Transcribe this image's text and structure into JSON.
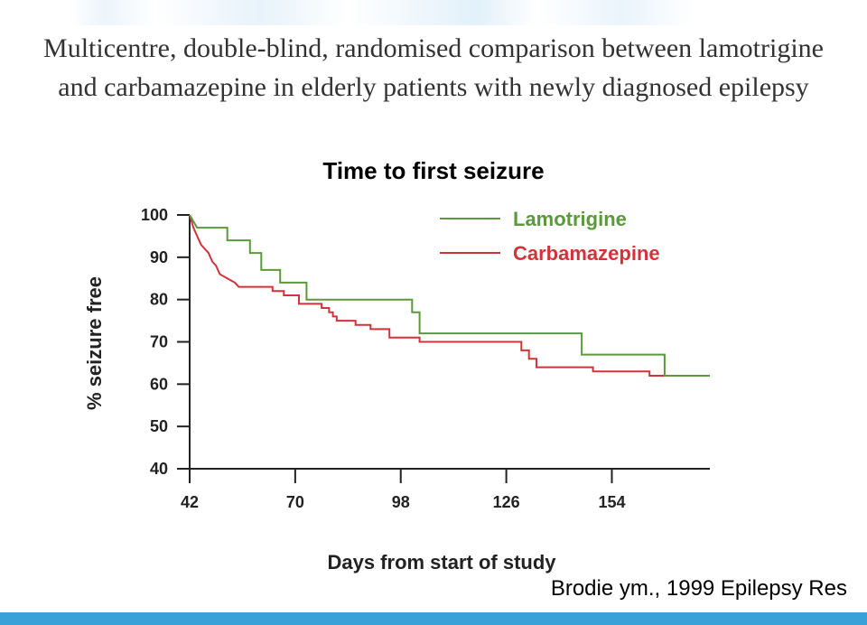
{
  "slide": {
    "title": "Multicentre, double-blind, randomised comparison between lamotrigine and carbamazepine in elderly patients with newly diagnosed epilepsy",
    "citation": "Brodie ym., 1999 Epilepsy Res"
  },
  "colors": {
    "lamotrigine": "#5a9a3c",
    "carbamazepine": "#d2333b",
    "accent_bar": "#3aa0d8"
  },
  "chart_data": {
    "type": "line",
    "title": "Time to first seizure",
    "xlabel": "Days from start of study",
    "ylabel": "% seizure free",
    "xlim": [
      42,
      180
    ],
    "ylim": [
      40,
      100
    ],
    "x_ticks": [
      42,
      70,
      98,
      126,
      154
    ],
    "y_ticks": [
      100,
      90,
      80,
      70,
      60,
      50,
      40
    ],
    "grid": false,
    "legend_position": "top-right",
    "step": true,
    "series": [
      {
        "name": "Lamotrigine",
        "color": "#5a9a3c",
        "points": [
          [
            42,
            100
          ],
          [
            44,
            97
          ],
          [
            52,
            97
          ],
          [
            52,
            94
          ],
          [
            58,
            94
          ],
          [
            58,
            91
          ],
          [
            61,
            91
          ],
          [
            61,
            87
          ],
          [
            66,
            87
          ],
          [
            66,
            84
          ],
          [
            73,
            84
          ],
          [
            73,
            80
          ],
          [
            101,
            80
          ],
          [
            101,
            77
          ],
          [
            103,
            77
          ],
          [
            103,
            72
          ],
          [
            146,
            72
          ],
          [
            146,
            67
          ],
          [
            168,
            67
          ],
          [
            168,
            62
          ],
          [
            180,
            62
          ]
        ]
      },
      {
        "name": "Carbamazepine",
        "color": "#d2333b",
        "points": [
          [
            42,
            100
          ],
          [
            43,
            97
          ],
          [
            44,
            95
          ],
          [
            45,
            93
          ],
          [
            46,
            92
          ],
          [
            47,
            91
          ],
          [
            48,
            89
          ],
          [
            49,
            88
          ],
          [
            50,
            86
          ],
          [
            52,
            85
          ],
          [
            54,
            84
          ],
          [
            55,
            83
          ],
          [
            64,
            83
          ],
          [
            64,
            82
          ],
          [
            67,
            82
          ],
          [
            67,
            81
          ],
          [
            71,
            81
          ],
          [
            71,
            79
          ],
          [
            77,
            79
          ],
          [
            77,
            78
          ],
          [
            79,
            78
          ],
          [
            79,
            77
          ],
          [
            80,
            77
          ],
          [
            80,
            76
          ],
          [
            81,
            76
          ],
          [
            81,
            75
          ],
          [
            86,
            75
          ],
          [
            86,
            74
          ],
          [
            90,
            74
          ],
          [
            90,
            73
          ],
          [
            95,
            73
          ],
          [
            95,
            71
          ],
          [
            103,
            71
          ],
          [
            103,
            70
          ],
          [
            130,
            70
          ],
          [
            130,
            68
          ],
          [
            132,
            68
          ],
          [
            132,
            66
          ],
          [
            134,
            66
          ],
          [
            134,
            64
          ],
          [
            149,
            64
          ],
          [
            149,
            63
          ],
          [
            164,
            63
          ],
          [
            164,
            62
          ],
          [
            180,
            62
          ]
        ]
      }
    ]
  }
}
